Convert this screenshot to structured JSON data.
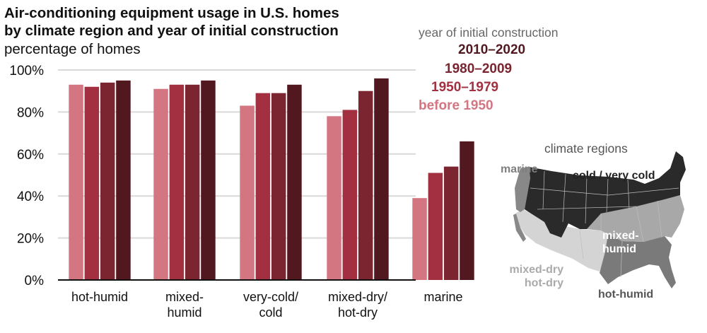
{
  "chart_data": {
    "type": "bar",
    "title": "Air-conditioning equipment usage in U.S. homes by climate region and year of initial construction",
    "title_lines": [
      "Air-conditioning equipment usage in U.S. homes",
      "by climate region and year of initial construction"
    ],
    "subtitle": "percentage of homes",
    "xlabel": "",
    "ylabel": "percentage of homes",
    "ylim": [
      0,
      100
    ],
    "yticks": [
      0,
      20,
      40,
      60,
      80,
      100
    ],
    "ytick_labels": [
      "0%",
      "20%",
      "40%",
      "60%",
      "80%",
      "100%"
    ],
    "grid": true,
    "categories": [
      "hot-humid",
      "mixed-humid",
      "very-cold/cold",
      "mixed-dry/hot-dry",
      "marine"
    ],
    "category_label_lines": [
      [
        "hot-humid"
      ],
      [
        "mixed-",
        "humid"
      ],
      [
        "very-cold/",
        "cold"
      ],
      [
        "mixed-dry/",
        "hot-dry"
      ],
      [
        "marine"
      ]
    ],
    "legend_title": "year of initial construction",
    "legend_position": "top-right",
    "series": [
      {
        "name": "before 1950",
        "color": "#d47681",
        "values": [
          93,
          91,
          83,
          78,
          39
        ]
      },
      {
        "name": "1950–1979",
        "color": "#a23040",
        "values": [
          92,
          93,
          89,
          81,
          51
        ]
      },
      {
        "name": "1980–2009",
        "color": "#7a2530",
        "values": [
          94,
          93,
          89,
          90,
          54
        ]
      },
      {
        "name": "2010–2020",
        "color": "#521820",
        "values": [
          95,
          95,
          93,
          96,
          66
        ]
      }
    ]
  },
  "legend": {
    "title": "year of initial construction",
    "items_top_to_bottom": [
      {
        "label": "2010–2020",
        "color": "#521820"
      },
      {
        "label": "1980–2009",
        "color": "#7a2530"
      },
      {
        "label": "1950–1979",
        "color": "#a23040"
      },
      {
        "label": "before 1950",
        "color": "#d47681"
      }
    ]
  },
  "map": {
    "title": "climate regions",
    "regions": {
      "marine": {
        "label": "marine",
        "color": "#888888"
      },
      "cold": {
        "label": "cold / very cold",
        "color": "#2a2a2a"
      },
      "mixed_humid": {
        "label_lines": [
          "mixed-",
          "humid"
        ],
        "color": "#a8a8a8"
      },
      "mixed_dry": {
        "label_lines": [
          "mixed-dry",
          "hot-dry"
        ],
        "color": "#d4d4d4"
      },
      "hot_humid": {
        "label": "hot-humid",
        "color": "#7a7a7a"
      }
    }
  }
}
